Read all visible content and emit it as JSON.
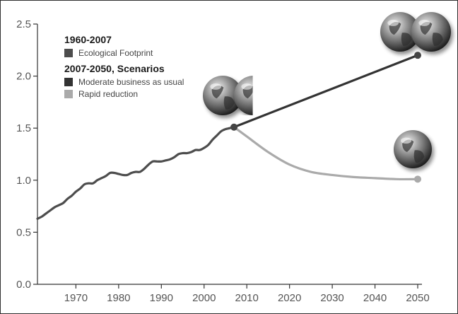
{
  "chart_data": {
    "type": "line",
    "xlim": [
      1961,
      2050
    ],
    "ylim": [
      0,
      2.5
    ],
    "x_ticks": [
      1970,
      1980,
      1990,
      2000,
      2010,
      2020,
      2030,
      2040,
      2050
    ],
    "y_ticks": [
      0,
      0.5,
      1.0,
      1.5,
      2.0,
      2.5
    ],
    "x_tick_labels": [
      "1970",
      "1980",
      "1990",
      "2000",
      "2010",
      "2020",
      "2030",
      "2040",
      "2050"
    ],
    "y_tick_labels": [
      "0.0",
      "0.5",
      "1.0",
      "1.5",
      "2.0",
      "2.5"
    ],
    "grid": false,
    "legend_position": "top-left",
    "legend": {
      "groups": [
        {
          "heading": "1960-2007",
          "items": [
            {
              "label": "Ecological Footprint",
              "color": "#4d4d4d"
            }
          ]
        },
        {
          "heading": "2007-2050, Scenarios",
          "items": [
            {
              "label": "Moderate business as usual",
              "color": "#333333"
            },
            {
              "label": "Rapid reduction",
              "color": "#aaaaaa"
            }
          ]
        }
      ]
    },
    "series": [
      {
        "name": "Ecological Footprint",
        "color": "#4d4d4d",
        "x": [
          1961,
          1962,
          1963,
          1964,
          1965,
          1966,
          1967,
          1968,
          1969,
          1970,
          1971,
          1972,
          1973,
          1974,
          1975,
          1976,
          1977,
          1978,
          1979,
          1980,
          1981,
          1982,
          1983,
          1984,
          1985,
          1986,
          1987,
          1988,
          1989,
          1990,
          1991,
          1992,
          1993,
          1994,
          1995,
          1996,
          1997,
          1998,
          1999,
          2000,
          2001,
          2002,
          2003,
          2004,
          2005,
          2006,
          2007
        ],
        "values": [
          0.63,
          0.65,
          0.68,
          0.71,
          0.74,
          0.76,
          0.78,
          0.82,
          0.85,
          0.89,
          0.92,
          0.96,
          0.97,
          0.97,
          1.0,
          1.02,
          1.04,
          1.07,
          1.07,
          1.06,
          1.05,
          1.05,
          1.07,
          1.08,
          1.08,
          1.11,
          1.15,
          1.18,
          1.18,
          1.18,
          1.19,
          1.2,
          1.22,
          1.25,
          1.26,
          1.26,
          1.27,
          1.29,
          1.29,
          1.31,
          1.34,
          1.39,
          1.43,
          1.47,
          1.49,
          1.5,
          1.51
        ]
      },
      {
        "name": "Moderate business as usual",
        "color": "#333333",
        "x": [
          2007,
          2050
        ],
        "values": [
          1.51,
          2.2
        ]
      },
      {
        "name": "Rapid reduction",
        "color": "#aaaaaa",
        "x": [
          2007,
          2010,
          2015,
          2020,
          2025,
          2030,
          2035,
          2040,
          2045,
          2050
        ],
        "values": [
          1.51,
          1.42,
          1.27,
          1.15,
          1.08,
          1.05,
          1.03,
          1.02,
          1.01,
          1.01
        ]
      }
    ],
    "markers": [
      {
        "x": 2007,
        "y": 1.51,
        "color": "#444444"
      },
      {
        "x": 2050,
        "y": 2.2,
        "color": "#444444"
      },
      {
        "x": 2050,
        "y": 1.01,
        "color": "#aaaaaa"
      }
    ],
    "globe_annotations": [
      {
        "anchor_x": 2007,
        "anchor_y": 1.51,
        "count": 1.5
      },
      {
        "anchor_x": 2050,
        "anchor_y": 2.2,
        "count": 2.2
      },
      {
        "anchor_x": 2050,
        "anchor_y": 1.01,
        "count": 1
      }
    ]
  }
}
